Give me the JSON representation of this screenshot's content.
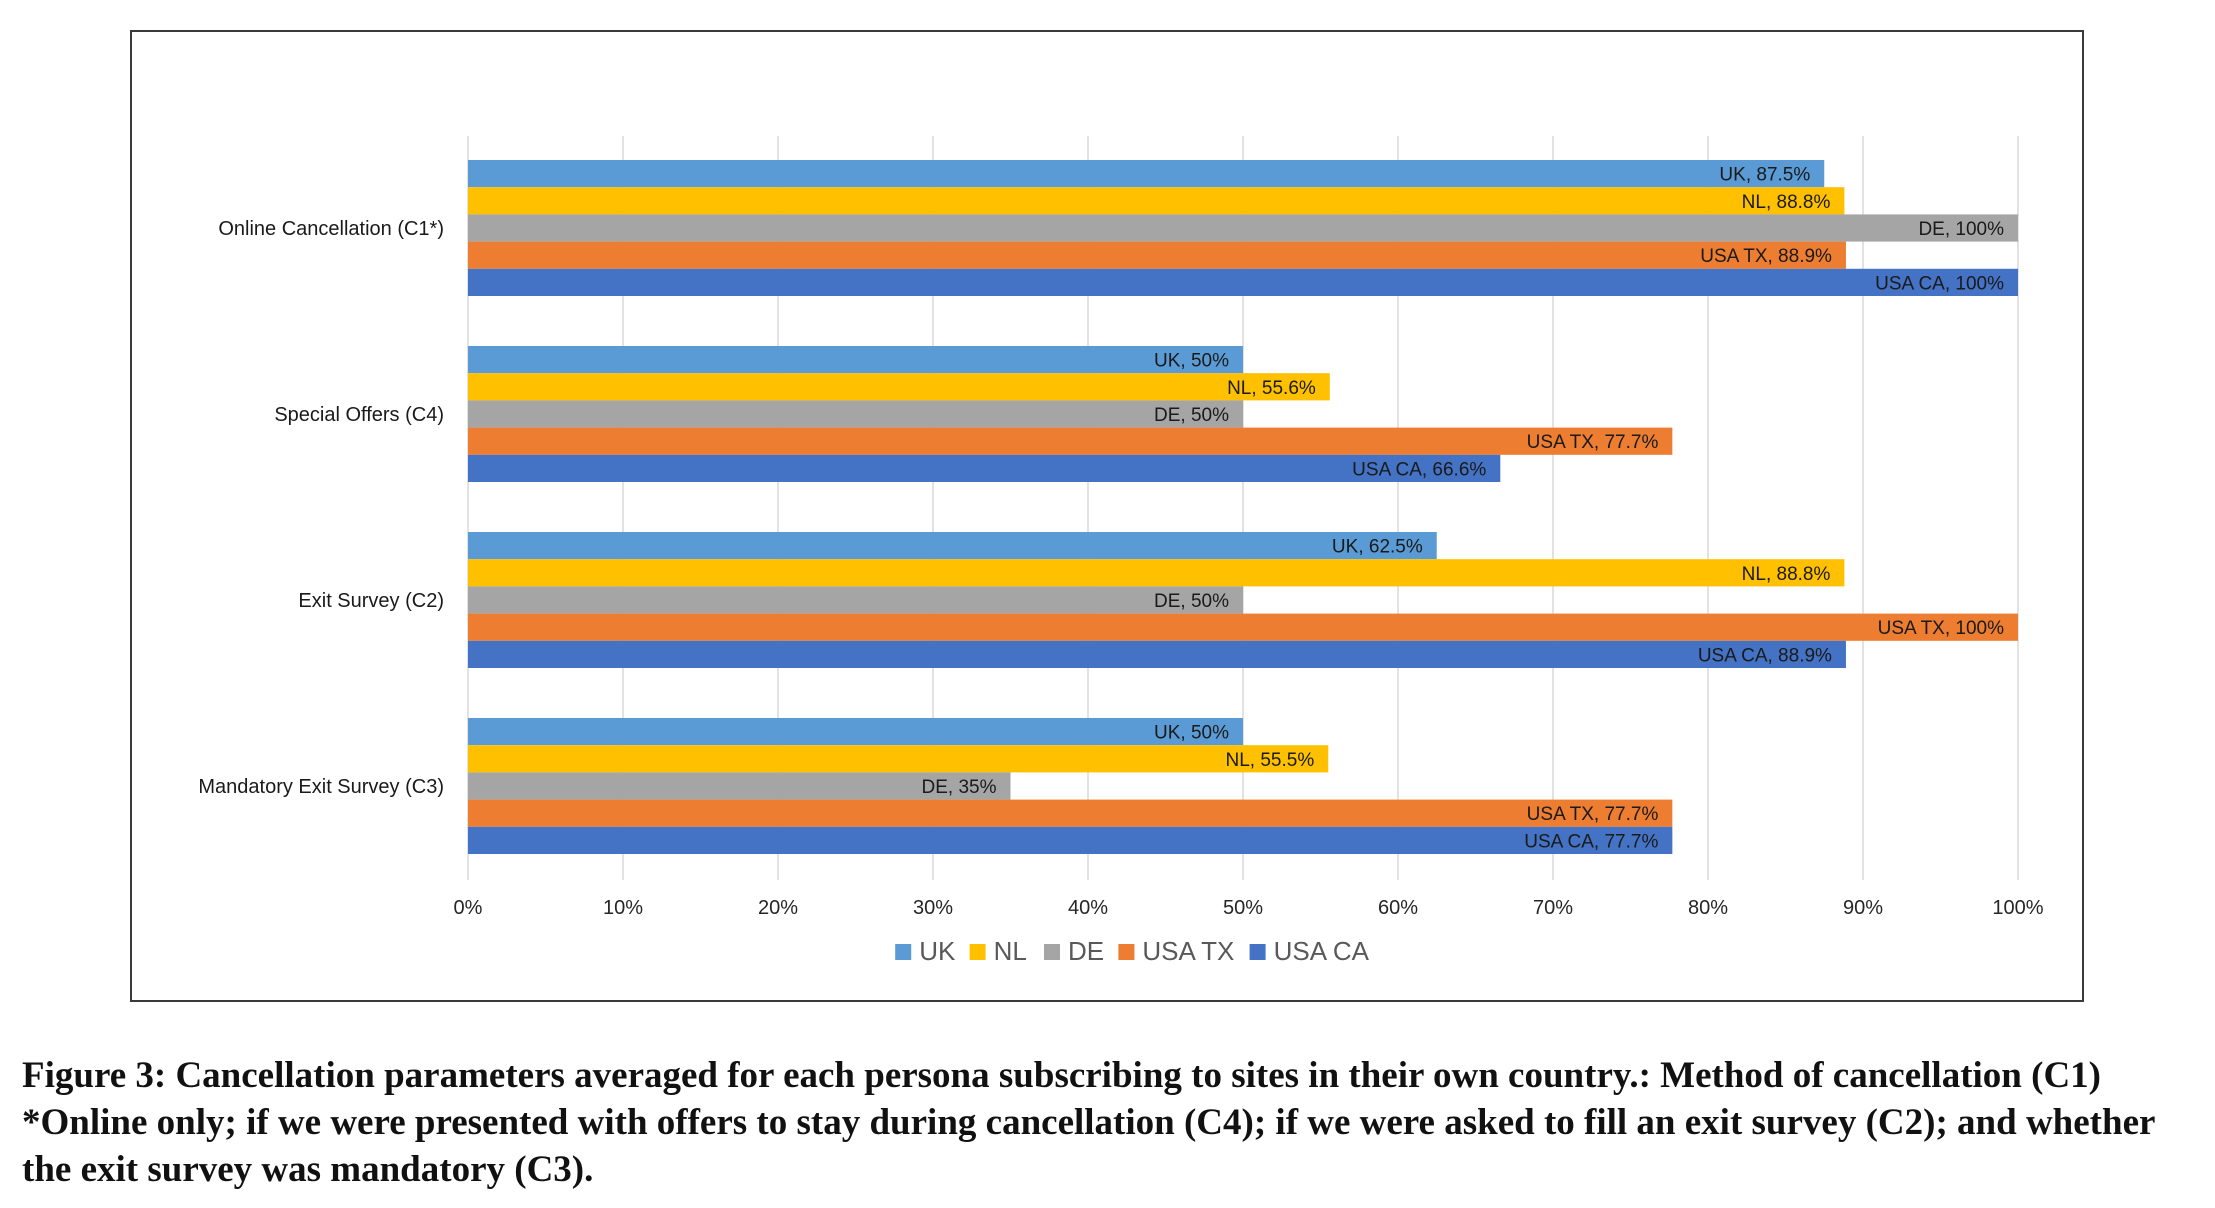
{
  "chart_data": {
    "type": "bar",
    "orientation": "horizontal",
    "categories": [
      "Online Cancellation (C1*)",
      "Special Offers (C4)",
      "Exit Survey (C2)",
      "Mandatory Exit Survey (C3)"
    ],
    "series": [
      {
        "name": "UK",
        "color": "#5b9bd5",
        "values": [
          87.5,
          50,
          62.5,
          50
        ],
        "labels": [
          "UK, 87.5%",
          "UK, 50%",
          "UK, 62.5%",
          "UK, 50%"
        ]
      },
      {
        "name": "NL",
        "color": "#ffc000",
        "values": [
          88.8,
          55.6,
          88.8,
          55.5
        ],
        "labels": [
          "NL, 88.8%",
          "NL, 55.6%",
          "NL, 88.8%",
          "NL, 55.5%"
        ]
      },
      {
        "name": "DE",
        "color": "#a5a5a5",
        "values": [
          100,
          50,
          50,
          35
        ],
        "labels": [
          "DE, 100%",
          "DE, 50%",
          "DE, 50%",
          "DE, 35%"
        ]
      },
      {
        "name": "USA TX",
        "color": "#ed7d31",
        "values": [
          88.9,
          77.7,
          100,
          77.7
        ],
        "labels": [
          "USA TX, 88.9%",
          "USA TX, 77.7%",
          "USA TX, 100%",
          "USA TX, 77.7%"
        ]
      },
      {
        "name": "USA CA",
        "color": "#4472c4",
        "values": [
          100,
          66.6,
          88.9,
          77.7
        ],
        "labels": [
          "USA CA, 100%",
          "USA CA, 66.6%",
          "USA CA, 88.9%",
          "USA CA, 77.7%"
        ]
      }
    ],
    "xlim": [
      0,
      100
    ],
    "x_ticks": [
      "0%",
      "10%",
      "20%",
      "30%",
      "40%",
      "50%",
      "60%",
      "70%",
      "80%",
      "90%",
      "100%"
    ],
    "grid": true,
    "legend_position": "bottom"
  },
  "caption": "Figure 3: Cancellation parameters averaged for each persona subscribing to sites in their own country.: Method of cancellation (C1) *Online only; if we were presented with offers to stay during cancellation (C4); if we were asked to fill an exit survey (C2); and whether the exit survey was mandatory (C3)."
}
